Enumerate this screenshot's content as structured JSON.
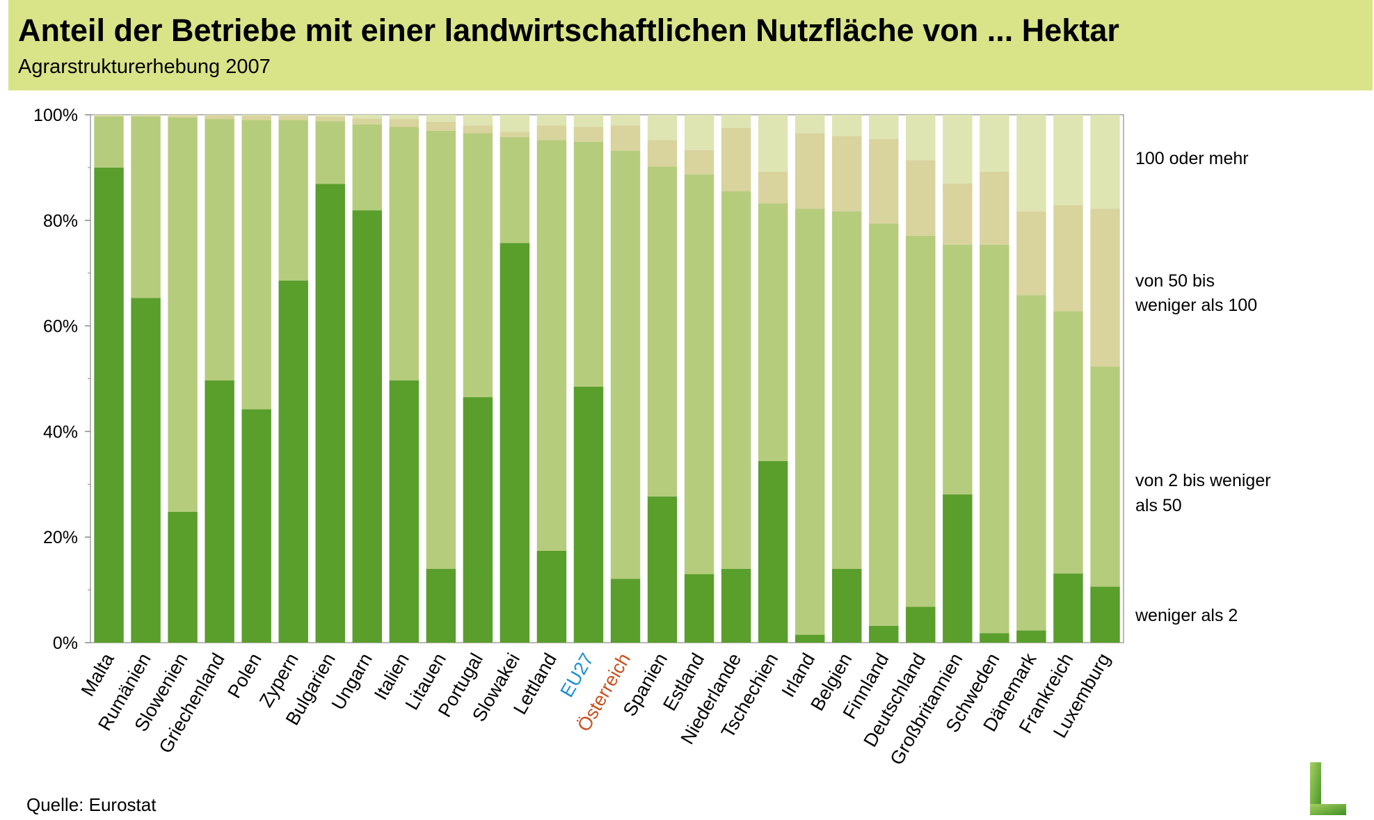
{
  "header": {
    "title": "Anteil der Betriebe mit einer landwirtschaftlichen Nutzfläche von ... Hektar",
    "subtitle": "Agrarstrukturerhebung 2007"
  },
  "source": "Quelle: Eurostat",
  "colors": {
    "weniger_als_2": "#5a9e2c",
    "2_bis_50": "#b6cc7d",
    "50_bis_100": "#d9d39d",
    "100_oder_mehr": "#dee5b2",
    "eu27_label": "#1a8fd0",
    "oesterreich_label": "#c8501e",
    "header_bg": "#d9e388"
  },
  "chart_data": {
    "type": "bar",
    "stacked": true,
    "title": "Anteil der Betriebe mit einer landwirtschaftlichen Nutzfläche von ... Hektar",
    "subtitle": "Agrarstrukturerhebung 2007",
    "xlabel": "",
    "ylabel": "",
    "ylim": [
      0,
      100
    ],
    "yticks": [
      "0%",
      "20%",
      "40%",
      "60%",
      "80%",
      "100%"
    ],
    "legend_placement": "right",
    "categories": [
      "Malta",
      "Rumänien",
      "Slowenien",
      "Griechenland",
      "Polen",
      "Zypern",
      "Bulgarien",
      "Ungarn",
      "Italien",
      "Litauen",
      "Portugal",
      "Slowakei",
      "Lettland",
      "EU27",
      "Österreich",
      "Spanien",
      "Estland",
      "Niederlande",
      "Tschechien",
      "Irland",
      "Belgien",
      "Finnland",
      "Deutschland",
      "Großbritannien",
      "Schweden",
      "Dänemark",
      "Frankreich",
      "Luxemburg"
    ],
    "highlight": {
      "EU27": "eu27_label",
      "Österreich": "oesterreich_label"
    },
    "series": [
      {
        "name": "weniger als 2",
        "color_key": "weniger_als_2",
        "values": [
          90.0,
          65.3,
          24.8,
          49.7,
          44.2,
          68.6,
          86.9,
          81.9,
          49.7,
          14.0,
          46.5,
          75.7,
          17.4,
          48.5,
          12.1,
          27.7,
          13.0,
          14.0,
          34.4,
          1.5,
          14.0,
          3.2,
          6.8,
          28.1,
          1.8,
          2.3,
          13.1,
          10.6
        ]
      },
      {
        "name": "von 2 bis weniger als 50",
        "color_key": "2_bis_50",
        "values": [
          9.7,
          34.4,
          74.7,
          49.5,
          54.8,
          30.4,
          11.9,
          16.3,
          48.0,
          83.0,
          50.0,
          20.1,
          77.8,
          46.4,
          81.1,
          62.5,
          75.7,
          71.5,
          48.8,
          80.7,
          67.7,
          76.2,
          70.3,
          47.3,
          73.6,
          63.5,
          49.7,
          41.7
        ]
      },
      {
        "name": "von 50 bis weniger als 100",
        "color_key": "50_bis_100",
        "values": [
          0.2,
          0.2,
          0.4,
          0.7,
          0.8,
          0.8,
          0.9,
          1.1,
          1.5,
          1.7,
          1.5,
          1.0,
          2.8,
          2.8,
          4.8,
          5.0,
          4.6,
          12.0,
          6.0,
          14.3,
          14.3,
          16.0,
          14.3,
          11.6,
          13.8,
          15.9,
          20.1,
          29.9
        ]
      },
      {
        "name": "100 oder mehr",
        "color_key": "100_oder_mehr",
        "values": [
          0.1,
          0.1,
          0.1,
          0.1,
          0.2,
          0.2,
          0.3,
          0.7,
          0.8,
          1.3,
          2.0,
          3.2,
          2.0,
          2.3,
          2.0,
          4.8,
          6.7,
          2.5,
          10.8,
          3.5,
          4.0,
          4.6,
          8.6,
          13.0,
          10.8,
          18.3,
          17.1,
          17.8
        ]
      }
    ],
    "legend_labels": [
      {
        "lines": [
          "100 oder mehr"
        ]
      },
      {
        "lines": [
          "von 50 bis",
          "weniger als 100"
        ]
      },
      {
        "lines": [
          "von 2 bis weniger",
          "als 50"
        ]
      },
      {
        "lines": [
          "weniger als 2"
        ]
      }
    ]
  }
}
